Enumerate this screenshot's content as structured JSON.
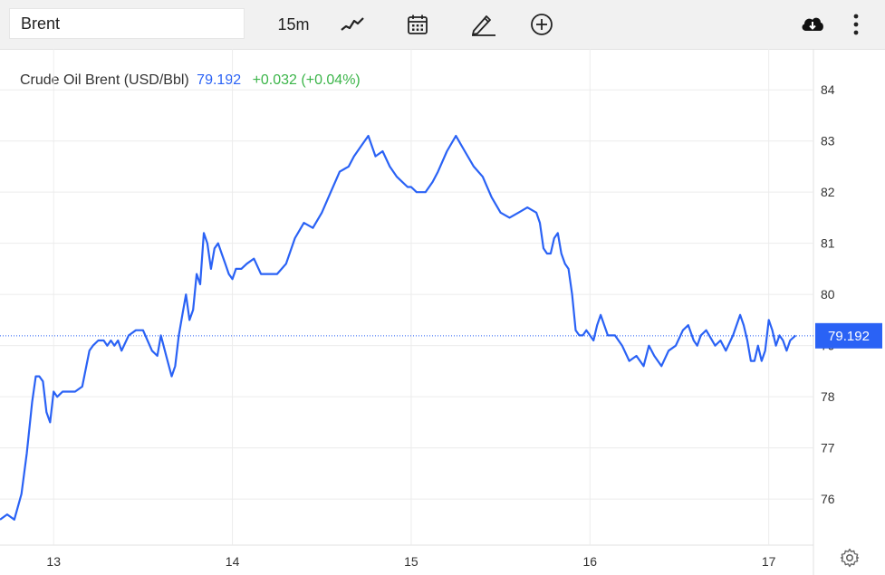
{
  "toolbar": {
    "symbol_value": "Brent",
    "interval_label": "15m",
    "icons": [
      "chart-type-icon",
      "calendar-icon",
      "draw-pencil-icon",
      "add-indicator-icon",
      "download-icon",
      "more-vertical-icon"
    ]
  },
  "legend": {
    "name": "Crude Oil Brent (USD/Bbl)",
    "price": "79.192",
    "change": "+0.032 (+0.04%)"
  },
  "colors": {
    "line": "#2a62f5",
    "last_price_tag": "#2a62f5",
    "change_positive": "#3cb54a",
    "grid": "#ececec"
  },
  "chart_data": {
    "type": "line",
    "title": "Crude Oil Brent (USD/Bbl)",
    "xlabel": "",
    "ylabel": "",
    "x_tick_labels": [
      "13",
      "14",
      "15",
      "16",
      "17"
    ],
    "y_tick_labels": [
      "76",
      "77",
      "78",
      "79",
      "80",
      "81",
      "82",
      "83",
      "84"
    ],
    "ylim": [
      75.1,
      84.8
    ],
    "xlim": [
      12.7,
      17.25
    ],
    "grid": true,
    "last_value_label": "79.192",
    "series": [
      {
        "name": "Crude Oil Brent (USD/Bbl)",
        "x": [
          12.7,
          12.74,
          12.78,
          12.82,
          12.85,
          12.88,
          12.9,
          12.92,
          12.94,
          12.96,
          12.98,
          13.0,
          13.02,
          13.05,
          13.08,
          13.12,
          13.16,
          13.2,
          13.22,
          13.25,
          13.28,
          13.3,
          13.32,
          13.34,
          13.36,
          13.38,
          13.42,
          13.46,
          13.5,
          13.55,
          13.58,
          13.6,
          13.63,
          13.66,
          13.68,
          13.7,
          13.72,
          13.74,
          13.76,
          13.78,
          13.8,
          13.82,
          13.84,
          13.86,
          13.88,
          13.9,
          13.92,
          13.94,
          13.96,
          13.98,
          14.0,
          14.02,
          14.05,
          14.08,
          14.12,
          14.16,
          14.2,
          14.25,
          14.3,
          14.35,
          14.4,
          14.45,
          14.5,
          14.55,
          14.6,
          14.65,
          14.68,
          14.72,
          14.76,
          14.8,
          14.84,
          14.88,
          14.92,
          14.95,
          14.98,
          15.0,
          15.03,
          15.06,
          15.08,
          15.1,
          15.12,
          15.15,
          15.2,
          15.25,
          15.3,
          15.35,
          15.4,
          15.45,
          15.5,
          15.55,
          15.6,
          15.65,
          15.7,
          15.72,
          15.74,
          15.76,
          15.78,
          15.8,
          15.82,
          15.84,
          15.86,
          15.88,
          15.9,
          15.92,
          15.94,
          15.96,
          15.98,
          16.0,
          16.02,
          16.04,
          16.06,
          16.1,
          16.14,
          16.18,
          16.22,
          16.26,
          16.3,
          16.33,
          16.36,
          16.4,
          16.44,
          16.48,
          16.52,
          16.55,
          16.58,
          16.6,
          16.62,
          16.65,
          16.7,
          16.73,
          16.76,
          16.8,
          16.84,
          16.86,
          16.88,
          16.9,
          16.92,
          16.94,
          16.96,
          16.98,
          17.0,
          17.02,
          17.04,
          17.06,
          17.08,
          17.1,
          17.12,
          17.15
        ],
        "y": [
          75.6,
          75.7,
          75.6,
          76.1,
          76.9,
          77.9,
          78.4,
          78.4,
          78.3,
          77.7,
          77.5,
          78.1,
          78.0,
          78.1,
          78.1,
          78.1,
          78.2,
          78.9,
          79.0,
          79.1,
          79.1,
          79.0,
          79.1,
          79.0,
          79.1,
          78.9,
          79.2,
          79.3,
          79.3,
          78.9,
          78.8,
          79.2,
          78.8,
          78.4,
          78.6,
          79.2,
          79.6,
          80.0,
          79.5,
          79.7,
          80.4,
          80.2,
          81.2,
          81.0,
          80.5,
          80.9,
          81.0,
          80.8,
          80.6,
          80.4,
          80.3,
          80.5,
          80.5,
          80.6,
          80.7,
          80.4,
          80.4,
          80.4,
          80.6,
          81.1,
          81.4,
          81.3,
          81.6,
          82.0,
          82.4,
          82.5,
          82.7,
          82.9,
          83.1,
          82.7,
          82.8,
          82.5,
          82.3,
          82.2,
          82.1,
          82.1,
          82.0,
          82.0,
          82.0,
          82.1,
          82.2,
          82.4,
          82.8,
          83.1,
          82.8,
          82.5,
          82.3,
          81.9,
          81.6,
          81.5,
          81.6,
          81.7,
          81.6,
          81.4,
          80.9,
          80.8,
          80.8,
          81.1,
          81.2,
          80.8,
          80.6,
          80.5,
          80.0,
          79.3,
          79.2,
          79.2,
          79.3,
          79.2,
          79.1,
          79.4,
          79.6,
          79.2,
          79.2,
          79.0,
          78.7,
          78.8,
          78.6,
          79.0,
          78.8,
          78.6,
          78.9,
          79.0,
          79.3,
          79.4,
          79.1,
          79.0,
          79.2,
          79.3,
          79.0,
          79.1,
          78.9,
          79.2,
          79.6,
          79.4,
          79.1,
          78.7,
          78.7,
          79.0,
          78.7,
          78.9,
          79.5,
          79.3,
          79.0,
          79.2,
          79.1,
          78.9,
          79.1,
          79.2
        ]
      }
    ]
  }
}
